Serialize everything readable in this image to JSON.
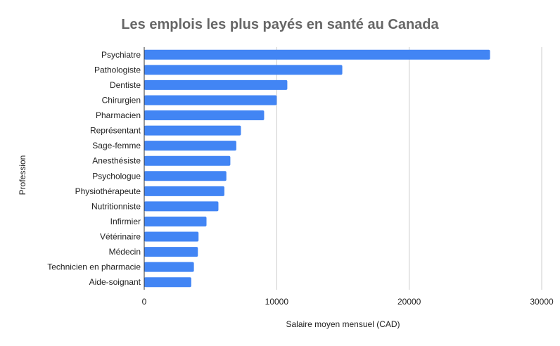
{
  "chart_data": {
    "type": "bar",
    "orientation": "horizontal",
    "title": "Les emplois les plus payés en santé au Canada",
    "xlabel": "Salaire moyen mensuel (CAD)",
    "ylabel": "Profession",
    "xlim": [
      0,
      30000
    ],
    "xticks": [
      "0",
      "10000",
      "20000",
      "30000"
    ],
    "grid": true,
    "legend": "none",
    "bar_color": "#4285f4",
    "categories": [
      "Psychiatre",
      "Pathologiste",
      "Dentiste",
      "Chirurgien",
      "Pharmacien",
      "Représentant",
      "Sage-femme",
      "Anesthésiste",
      "Psychologue",
      "Physiothérapeute",
      "Nutritionniste",
      "Infirmier",
      "Vétérinaire",
      "Médecin",
      "Technicien en pharmacie",
      "Aide-soignant"
    ],
    "values": [
      26100,
      14950,
      10800,
      10000,
      9050,
      7300,
      6950,
      6500,
      6200,
      6050,
      5600,
      4700,
      4100,
      4050,
      3750,
      3550
    ]
  }
}
